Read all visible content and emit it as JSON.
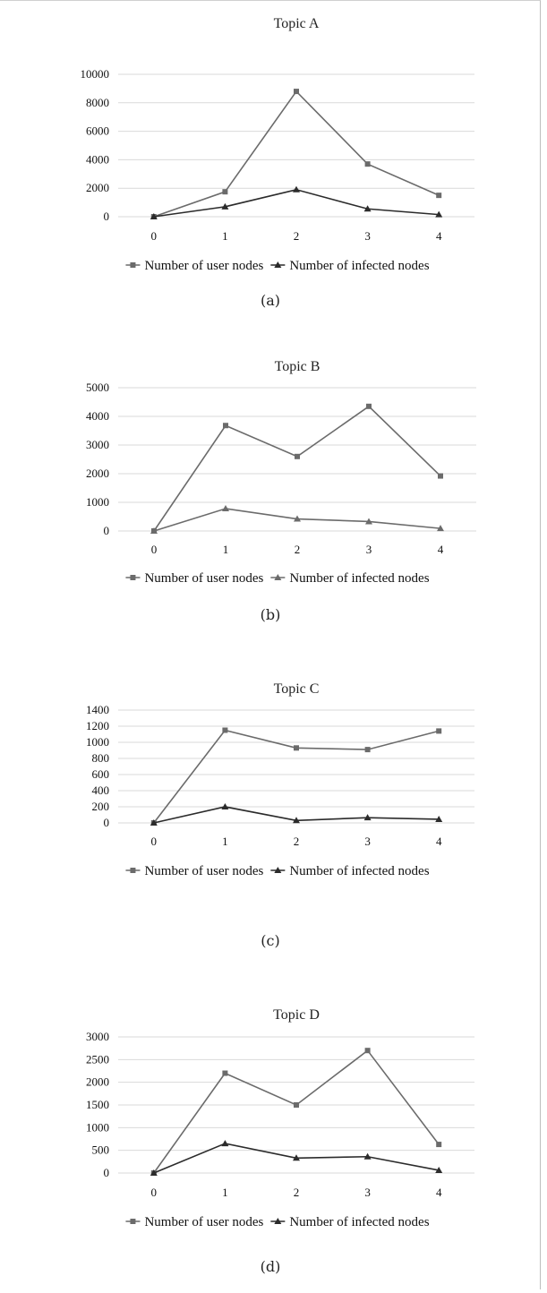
{
  "chart_data": [
    {
      "type": "line",
      "title": "Topic A",
      "caption": "(a)",
      "categories": [
        "0",
        "1",
        "2",
        "3",
        "4"
      ],
      "y_ticks": [
        "0",
        "2000",
        "4000",
        "6000",
        "8000",
        "10000"
      ],
      "ylim": [
        0,
        10000
      ],
      "grid": true,
      "legend_position": "bottom",
      "series": [
        {
          "name": "Number of user nodes",
          "values": [
            0,
            1750,
            8800,
            3700,
            1500
          ],
          "color": "#6b6b6b",
          "marker": "square"
        },
        {
          "name": "Number of infected nodes",
          "values": [
            0,
            700,
            1900,
            550,
            150
          ],
          "color": "#2b2b2b",
          "marker": "triangle"
        }
      ]
    },
    {
      "type": "line",
      "title": "Topic B",
      "caption": "(b)",
      "categories": [
        "0",
        "1",
        "2",
        "3",
        "4"
      ],
      "y_ticks": [
        "0",
        "1000",
        "2000",
        "3000",
        "4000",
        "5000"
      ],
      "ylim": [
        0,
        5000
      ],
      "grid": true,
      "legend_position": "bottom",
      "series": [
        {
          "name": "Number of user nodes",
          "values": [
            0,
            3680,
            2600,
            4350,
            1920
          ],
          "color": "#6b6b6b",
          "marker": "square"
        },
        {
          "name": "Number of infected nodes",
          "values": [
            0,
            780,
            420,
            330,
            90
          ],
          "color": "#6b6b6b",
          "marker": "triangle"
        }
      ]
    },
    {
      "type": "line",
      "title": "Topic C",
      "caption": "(c)",
      "categories": [
        "0",
        "1",
        "2",
        "3",
        "4"
      ],
      "y_ticks": [
        "0",
        "200",
        "400",
        "600",
        "800",
        "1000",
        "1200",
        "1400"
      ],
      "ylim": [
        0,
        1400
      ],
      "grid": true,
      "legend_position": "bottom",
      "series": [
        {
          "name": "Number of user nodes",
          "values": [
            0,
            1150,
            930,
            910,
            1140
          ],
          "color": "#6b6b6b",
          "marker": "square"
        },
        {
          "name": "Number of infected nodes",
          "values": [
            0,
            200,
            30,
            65,
            45
          ],
          "color": "#2b2b2b",
          "marker": "triangle"
        }
      ]
    },
    {
      "type": "line",
      "title": "Topic D",
      "caption": "(d)",
      "categories": [
        "0",
        "1",
        "2",
        "3",
        "4"
      ],
      "y_ticks": [
        "0",
        "500",
        "1000",
        "1500",
        "2000",
        "2500",
        "3000"
      ],
      "ylim": [
        0,
        3000
      ],
      "grid": true,
      "legend_position": "bottom",
      "series": [
        {
          "name": "Number of user nodes",
          "values": [
            0,
            2200,
            1500,
            2700,
            630
          ],
          "color": "#6b6b6b",
          "marker": "square"
        },
        {
          "name": "Number of infected nodes",
          "values": [
            0,
            650,
            330,
            360,
            60
          ],
          "color": "#2b2b2b",
          "marker": "triangle"
        }
      ]
    }
  ]
}
